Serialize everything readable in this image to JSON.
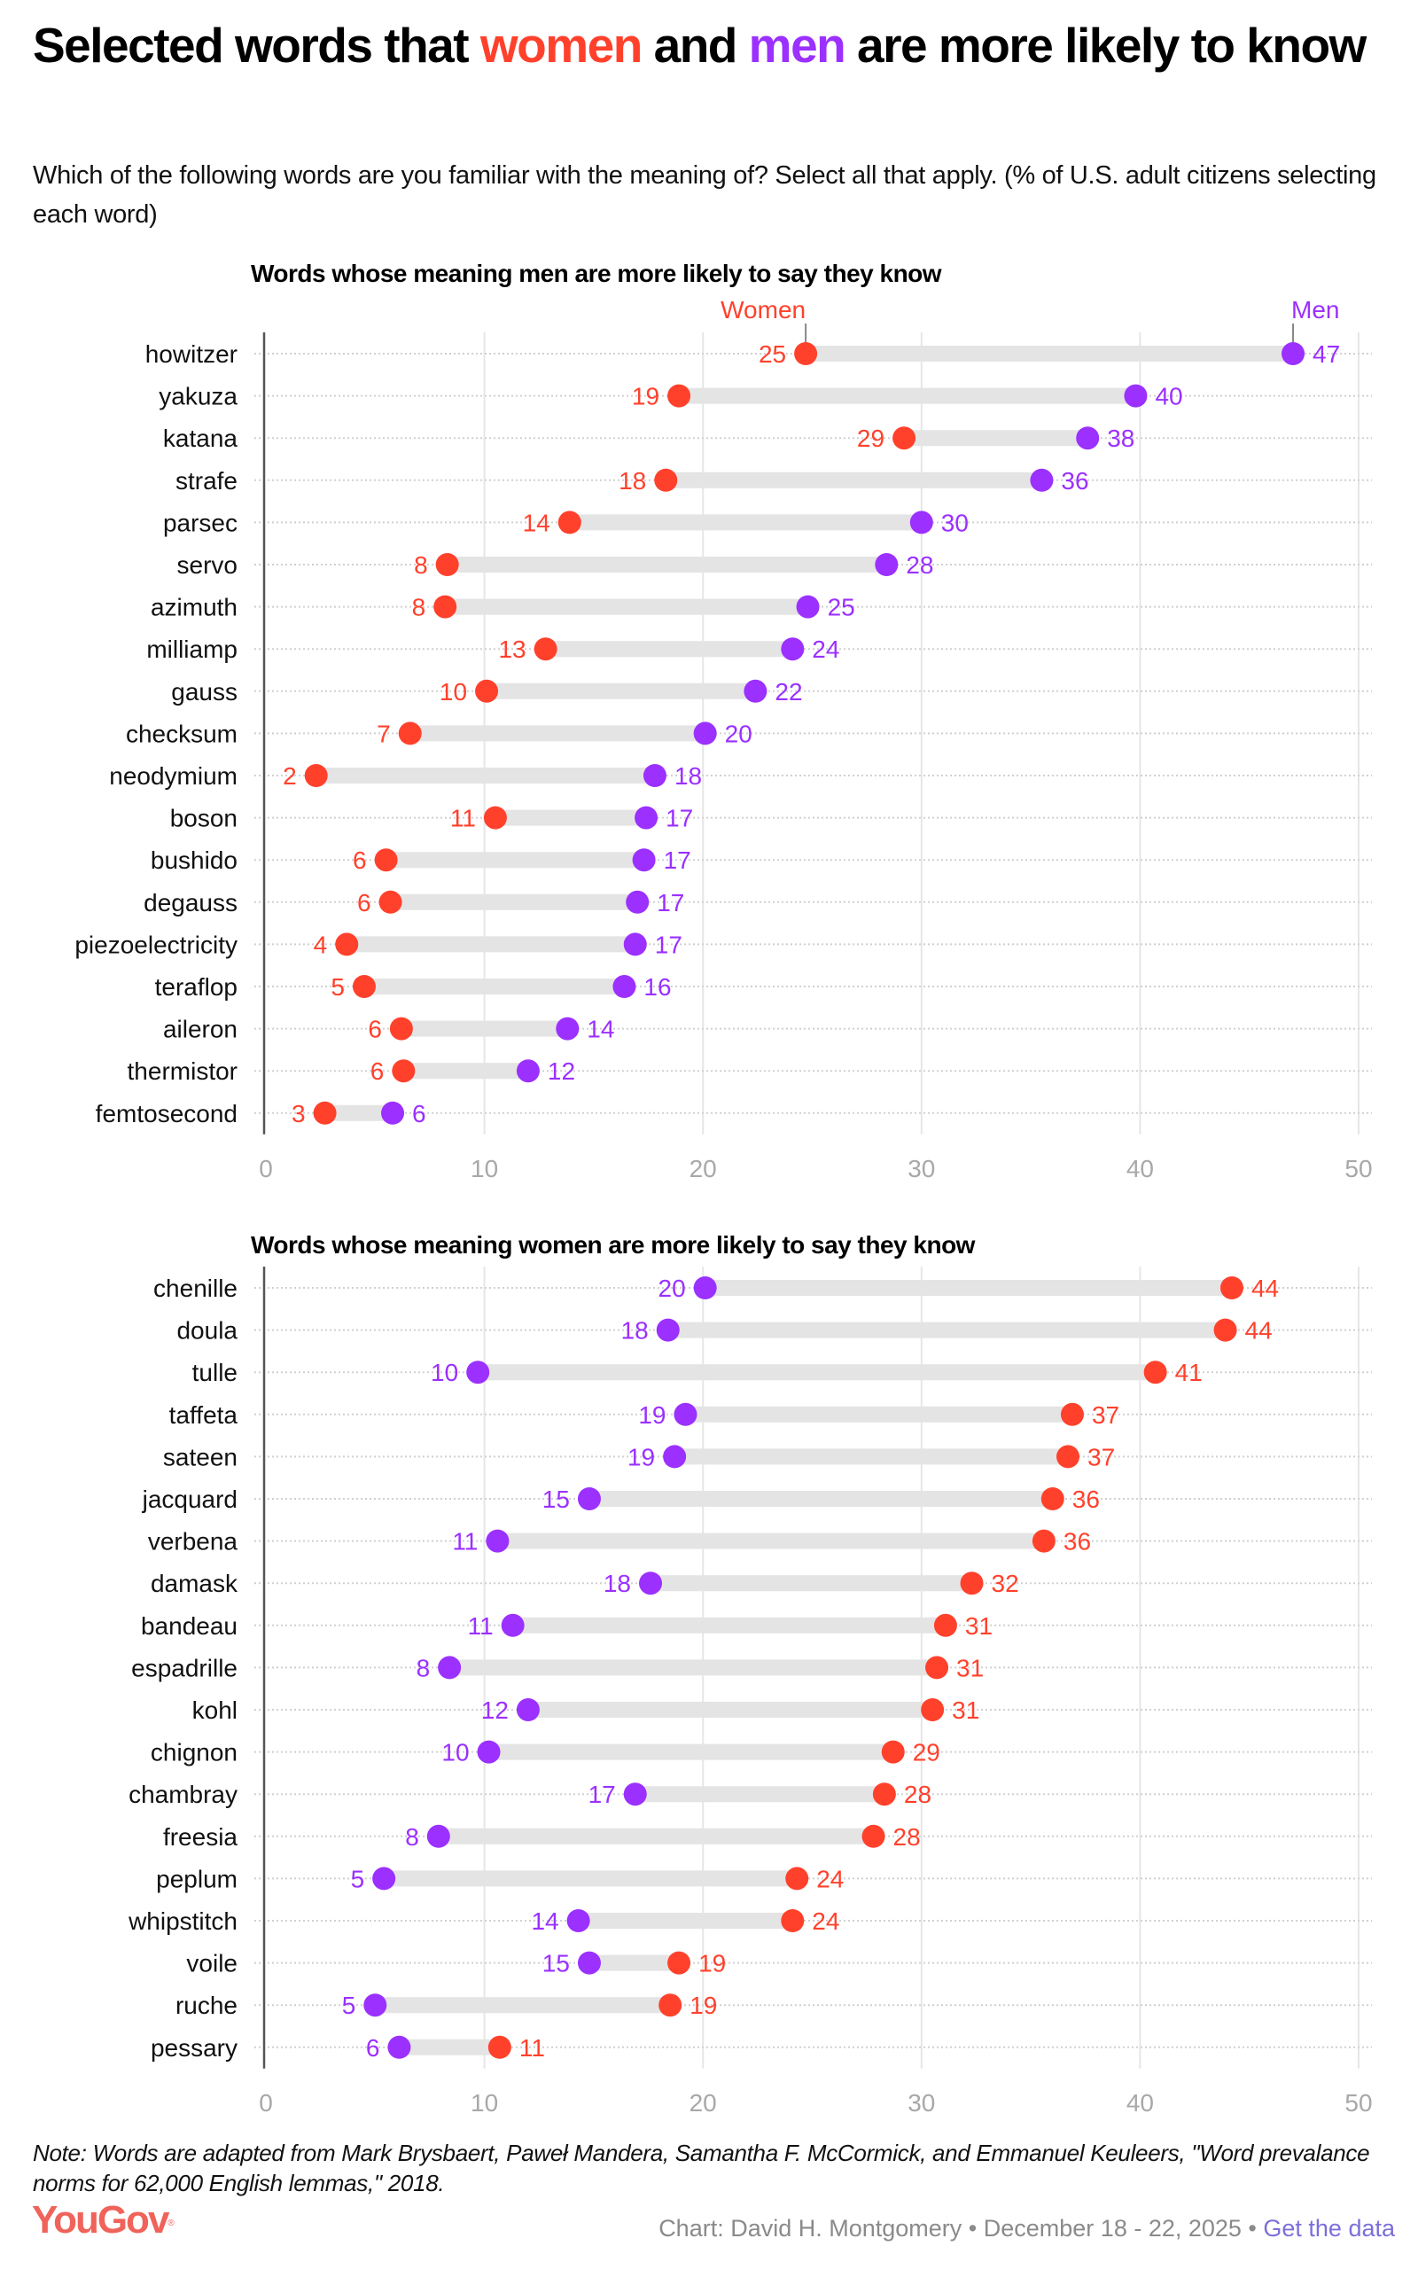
{
  "title": {
    "prefix": "Selected words that ",
    "women_word": "women",
    "middle": " and ",
    "men_word": "men",
    "suffix": " are more likely to know"
  },
  "subtitle": "Which of the following words are you familiar with the meaning of? Select all that apply. (% of U.S. adult citizens selecting each word)",
  "colors": {
    "women": "#FF412C",
    "men": "#9B30FF",
    "bar": "#E4E4E4",
    "grid": "#E6E6E6",
    "axis": "#555555",
    "tick": "#A8A8A8",
    "link": "#7B6FD9",
    "logo": "#F0635A"
  },
  "chart_data": [
    {
      "type": "dumbbell",
      "title": "Words whose meaning men are more likely to say they know",
      "xlim": [
        0,
        50
      ],
      "xticks": [
        0,
        10,
        20,
        30,
        40,
        50
      ],
      "grid": true,
      "legend": {
        "women": "Women",
        "men": "Men",
        "placement": "top, attached to first row"
      },
      "series": [
        {
          "name": "Women",
          "key": "women"
        },
        {
          "name": "Men",
          "key": "men"
        }
      ],
      "rows": [
        {
          "word": "howitzer",
          "women": 24.7,
          "men": 47.0,
          "women_label": "25",
          "men_label": "47"
        },
        {
          "word": "yakuza",
          "women": 18.9,
          "men": 39.8,
          "women_label": "19",
          "men_label": "40"
        },
        {
          "word": "katana",
          "women": 29.2,
          "men": 37.6,
          "women_label": "29",
          "men_label": "38"
        },
        {
          "word": "strafe",
          "women": 18.3,
          "men": 35.5,
          "women_label": "18",
          "men_label": "36"
        },
        {
          "word": "parsec",
          "women": 13.9,
          "men": 30.0,
          "women_label": "14",
          "men_label": "30"
        },
        {
          "word": "servo",
          "women": 8.3,
          "men": 28.4,
          "women_label": "8",
          "men_label": "28"
        },
        {
          "word": "azimuth",
          "women": 8.2,
          "men": 24.8,
          "women_label": "8",
          "men_label": "25"
        },
        {
          "word": "milliamp",
          "women": 12.8,
          "men": 24.1,
          "women_label": "13",
          "men_label": "24"
        },
        {
          "word": "gauss",
          "women": 10.1,
          "men": 22.4,
          "women_label": "10",
          "men_label": "22"
        },
        {
          "word": "checksum",
          "women": 6.6,
          "men": 20.1,
          "women_label": "7",
          "men_label": "20"
        },
        {
          "word": "neodymium",
          "women": 2.3,
          "men": 17.8,
          "women_label": "2",
          "men_label": "18"
        },
        {
          "word": "boson",
          "women": 10.5,
          "men": 17.4,
          "women_label": "11",
          "men_label": "17"
        },
        {
          "word": "bushido",
          "women": 5.5,
          "men": 17.3,
          "women_label": "6",
          "men_label": "17"
        },
        {
          "word": "degauss",
          "women": 5.7,
          "men": 17.0,
          "women_label": "6",
          "men_label": "17"
        },
        {
          "word": "piezoelectricity",
          "women": 3.7,
          "men": 16.9,
          "women_label": "4",
          "men_label": "17"
        },
        {
          "word": "teraflop",
          "women": 4.5,
          "men": 16.4,
          "women_label": "5",
          "men_label": "16"
        },
        {
          "word": "aileron",
          "women": 6.2,
          "men": 13.8,
          "women_label": "6",
          "men_label": "14"
        },
        {
          "word": "thermistor",
          "women": 6.3,
          "men": 12.0,
          "women_label": "6",
          "men_label": "12"
        },
        {
          "word": "femtosecond",
          "women": 2.7,
          "men": 5.8,
          "women_label": "3",
          "men_label": "6"
        }
      ]
    },
    {
      "type": "dumbbell",
      "title": "Words whose meaning women are more likely to say they know",
      "xlim": [
        0,
        50
      ],
      "xticks": [
        0,
        10,
        20,
        30,
        40,
        50
      ],
      "grid": true,
      "series": [
        {
          "name": "Men",
          "key": "men"
        },
        {
          "name": "Women",
          "key": "women"
        }
      ],
      "rows": [
        {
          "word": "chenille",
          "men": 20.1,
          "women": 44.2,
          "men_label": "20",
          "women_label": "44"
        },
        {
          "word": "doula",
          "men": 18.4,
          "women": 43.9,
          "men_label": "18",
          "women_label": "44"
        },
        {
          "word": "tulle",
          "men": 9.7,
          "women": 40.7,
          "men_label": "10",
          "women_label": "41"
        },
        {
          "word": "taffeta",
          "men": 19.2,
          "women": 36.9,
          "men_label": "19",
          "women_label": "37"
        },
        {
          "word": "sateen",
          "men": 18.7,
          "women": 36.7,
          "men_label": "19",
          "women_label": "37"
        },
        {
          "word": "jacquard",
          "men": 14.8,
          "women": 36.0,
          "men_label": "15",
          "women_label": "36"
        },
        {
          "word": "verbena",
          "men": 10.6,
          "women": 35.6,
          "men_label": "11",
          "women_label": "36"
        },
        {
          "word": "damask",
          "men": 17.6,
          "women": 32.3,
          "men_label": "18",
          "women_label": "32"
        },
        {
          "word": "bandeau",
          "men": 11.3,
          "women": 31.1,
          "men_label": "11",
          "women_label": "31"
        },
        {
          "word": "espadrille",
          "men": 8.4,
          "women": 30.7,
          "men_label": "8",
          "women_label": "31"
        },
        {
          "word": "kohl",
          "men": 12.0,
          "women": 30.5,
          "men_label": "12",
          "women_label": "31"
        },
        {
          "word": "chignon",
          "men": 10.2,
          "women": 28.7,
          "men_label": "10",
          "women_label": "29"
        },
        {
          "word": "chambray",
          "men": 16.9,
          "women": 28.3,
          "men_label": "17",
          "women_label": "28"
        },
        {
          "word": "freesia",
          "men": 7.9,
          "women": 27.8,
          "men_label": "8",
          "women_label": "28"
        },
        {
          "word": "peplum",
          "men": 5.4,
          "women": 24.3,
          "men_label": "5",
          "women_label": "24"
        },
        {
          "word": "whipstitch",
          "men": 14.3,
          "women": 24.1,
          "men_label": "14",
          "women_label": "24"
        },
        {
          "word": "voile",
          "men": 14.8,
          "women": 18.9,
          "men_label": "15",
          "women_label": "19"
        },
        {
          "word": "ruche",
          "men": 5.0,
          "women": 18.5,
          "men_label": "5",
          "women_label": "19"
        },
        {
          "word": "pessary",
          "men": 6.1,
          "women": 10.7,
          "men_label": "6",
          "women_label": "11"
        }
      ]
    }
  ],
  "footer": {
    "note": "Note: Words are adapted from Mark Brysbaert, Paweł Mandera, Samantha F. McCormick, and Emmanuel Keuleers, \"Word prevalance norms for 62,000 English lemmas,\" 2018.",
    "logo": "YouGov",
    "logo_mark": "®",
    "credit": "Chart: David H. Montgomery • December 18 - 22, 2025 • ",
    "link": "Get the data"
  }
}
